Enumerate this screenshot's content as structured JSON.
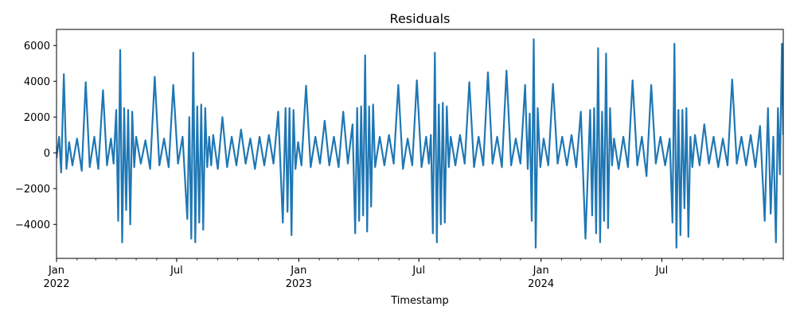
{
  "chart_data": {
    "type": "line",
    "title": "Residuals",
    "xlabel": "Timestamp",
    "ylabel": "",
    "ylim": [
      -5900,
      6900
    ],
    "xlim": [
      "2022-01-01",
      "2024-12-31"
    ],
    "grid": false,
    "legend": "none",
    "y_ticks": [
      -4000,
      -2000,
      0,
      2000,
      4000,
      6000
    ],
    "y_tick_labels": [
      "−4000",
      "−2000",
      "0",
      "2000",
      "4000",
      "6000"
    ],
    "x_major_ticks": [
      {
        "date": "2022-01-01",
        "label": "Jan",
        "sublabel": "2022"
      },
      {
        "date": "2022-07-01",
        "label": "Jul",
        "sublabel": ""
      },
      {
        "date": "2023-01-01",
        "label": "Jan",
        "sublabel": "2023"
      },
      {
        "date": "2023-07-01",
        "label": "Jul",
        "sublabel": ""
      },
      {
        "date": "2024-01-01",
        "label": "Jan",
        "sublabel": "2024"
      },
      {
        "date": "2024-07-01",
        "label": "Jul",
        "sublabel": ""
      }
    ],
    "series_color": "#1f77b4",
    "series": [
      {
        "x": [
          "2022-01-01",
          "2022-01-05",
          "2022-01-08",
          "2022-01-12",
          "2022-01-16",
          "2022-01-20",
          "2022-01-25",
          "2022-02-01",
          "2022-02-08",
          "2022-02-14",
          "2022-02-20",
          "2022-02-27",
          "2022-03-05",
          "2022-03-12",
          "2022-03-18",
          "2022-03-24",
          "2022-03-28",
          "2022-04-01",
          "2022-04-04",
          "2022-04-07",
          "2022-04-10",
          "2022-04-13",
          "2022-04-16",
          "2022-04-19",
          "2022-04-22",
          "2022-04-25",
          "2022-04-28",
          "2022-05-01",
          "2022-05-08",
          "2022-05-15",
          "2022-05-22",
          "2022-05-29",
          "2022-06-05",
          "2022-06-12",
          "2022-06-19",
          "2022-06-26",
          "2022-07-03",
          "2022-07-10",
          "2022-07-17",
          "2022-07-20",
          "2022-07-23",
          "2022-07-26",
          "2022-07-29",
          "2022-08-01",
          "2022-08-04",
          "2022-08-07",
          "2022-08-10",
          "2022-08-13",
          "2022-08-16",
          "2022-08-19",
          "2022-08-22",
          "2022-08-25",
          "2022-09-01",
          "2022-09-08",
          "2022-09-15",
          "2022-09-22",
          "2022-09-29",
          "2022-10-06",
          "2022-10-13",
          "2022-10-20",
          "2022-10-27",
          "2022-11-03",
          "2022-11-10",
          "2022-11-17",
          "2022-11-24",
          "2022-12-01",
          "2022-12-08",
          "2022-12-12",
          "2022-12-15",
          "2022-12-18",
          "2022-12-21",
          "2022-12-24",
          "2022-12-27",
          "2022-12-31",
          "2023-01-05",
          "2023-01-12",
          "2023-01-19",
          "2023-01-26",
          "2023-02-02",
          "2023-02-09",
          "2023-02-16",
          "2023-02-23",
          "2023-03-02",
          "2023-03-09",
          "2023-03-16",
          "2023-03-23",
          "2023-03-27",
          "2023-03-30",
          "2023-04-02",
          "2023-04-05",
          "2023-04-08",
          "2023-04-11",
          "2023-04-14",
          "2023-04-17",
          "2023-04-20",
          "2023-04-23",
          "2023-04-26",
          "2023-05-03",
          "2023-05-10",
          "2023-05-17",
          "2023-05-24",
          "2023-05-31",
          "2023-06-07",
          "2023-06-14",
          "2023-06-21",
          "2023-06-28",
          "2023-07-05",
          "2023-07-12",
          "2023-07-16",
          "2023-07-19",
          "2023-07-22",
          "2023-07-25",
          "2023-07-28",
          "2023-07-31",
          "2023-08-03",
          "2023-08-06",
          "2023-08-09",
          "2023-08-12",
          "2023-08-15",
          "2023-08-18",
          "2023-08-25",
          "2023-09-01",
          "2023-09-08",
          "2023-09-15",
          "2023-09-22",
          "2023-09-29",
          "2023-10-06",
          "2023-10-13",
          "2023-10-20",
          "2023-10-27",
          "2023-11-03",
          "2023-11-10",
          "2023-11-17",
          "2023-11-24",
          "2023-12-01",
          "2023-12-08",
          "2023-12-12",
          "2023-12-15",
          "2023-12-18",
          "2023-12-21",
          "2023-12-24",
          "2023-12-27",
          "2023-12-31",
          "2024-01-05",
          "2024-01-12",
          "2024-01-19",
          "2024-01-26",
          "2024-02-02",
          "2024-02-09",
          "2024-02-16",
          "2024-02-23",
          "2024-03-01",
          "2024-03-08",
          "2024-03-15",
          "2024-03-18",
          "2024-03-21",
          "2024-03-24",
          "2024-03-27",
          "2024-03-30",
          "2024-04-02",
          "2024-04-05",
          "2024-04-08",
          "2024-04-11",
          "2024-04-14",
          "2024-04-17",
          "2024-04-20",
          "2024-04-27",
          "2024-05-04",
          "2024-05-11",
          "2024-05-18",
          "2024-05-25",
          "2024-06-01",
          "2024-06-08",
          "2024-06-15",
          "2024-06-22",
          "2024-06-29",
          "2024-07-06",
          "2024-07-13",
          "2024-07-17",
          "2024-07-20",
          "2024-07-23",
          "2024-07-26",
          "2024-07-29",
          "2024-08-01",
          "2024-08-04",
          "2024-08-07",
          "2024-08-10",
          "2024-08-13",
          "2024-08-16",
          "2024-08-20",
          "2024-08-27",
          "2024-09-03",
          "2024-09-10",
          "2024-09-17",
          "2024-09-24",
          "2024-10-01",
          "2024-10-08",
          "2024-10-15",
          "2024-10-22",
          "2024-10-29",
          "2024-11-05",
          "2024-11-12",
          "2024-11-19",
          "2024-11-26",
          "2024-12-03",
          "2024-12-08",
          "2024-12-12",
          "2024-12-16",
          "2024-12-20",
          "2024-12-23",
          "2024-12-26",
          "2024-12-29",
          "2024-12-31"
        ],
        "y": [
          -300,
          900,
          -1100,
          4400,
          -900,
          600,
          -700,
          800,
          -1000,
          3950,
          -800,
          900,
          -900,
          3500,
          -700,
          800,
          -600,
          2400,
          -3800,
          5750,
          -5000,
          2500,
          -3200,
          2400,
          -4000,
          2300,
          -800,
          900,
          -600,
          700,
          -900,
          4250,
          -700,
          800,
          -800,
          3800,
          -600,
          900,
          -3700,
          2000,
          -4800,
          5600,
          -5000,
          2600,
          -3900,
          2700,
          -4300,
          2500,
          -800,
          900,
          -700,
          1000,
          -900,
          2000,
          -800,
          900,
          -700,
          1300,
          -600,
          800,
          -900,
          900,
          -700,
          1000,
          -600,
          2300,
          -3900,
          2500,
          -3300,
          2500,
          -4600,
          2400,
          -900,
          600,
          -700,
          3750,
          -800,
          900,
          -600,
          1800,
          -700,
          900,
          -800,
          2300,
          -600,
          1600,
          -4500,
          2500,
          -3800,
          2600,
          -3500,
          5450,
          -4400,
          2600,
          -3000,
          2700,
          -800,
          900,
          -700,
          1000,
          -600,
          3800,
          -900,
          800,
          -700,
          4050,
          -800,
          900,
          -600,
          1000,
          -4500,
          5600,
          -5000,
          2700,
          -4000,
          2800,
          -3900,
          2600,
          -800,
          900,
          -700,
          1000,
          -600,
          3950,
          -800,
          900,
          -700,
          4500,
          -600,
          900,
          -800,
          4600,
          -700,
          800,
          -600,
          3800,
          -900,
          2200,
          -3800,
          6350,
          -5300,
          2500,
          -800,
          800,
          -700,
          3850,
          -600,
          900,
          -700,
          1000,
          -800,
          2300,
          -4800,
          2400,
          -3500,
          2500,
          -4500,
          5850,
          -5000,
          2300,
          -3800,
          5550,
          -4200,
          2500,
          -700,
          800,
          -900,
          900,
          -800,
          4050,
          -700,
          900,
          -1300,
          3800,
          -600,
          900,
          -700,
          800,
          -3900,
          6100,
          -5300,
          2400,
          -4600,
          2400,
          -3100,
          2500,
          -4700,
          900,
          -800,
          1000,
          -700,
          1600,
          -600,
          900,
          -800,
          800,
          -700,
          4100,
          -600,
          900,
          -700,
          1000,
          -800,
          1500,
          -3800,
          2500,
          -3400,
          900,
          -5000,
          2500,
          -1200,
          6100,
          1000
        ]
      }
    ]
  }
}
